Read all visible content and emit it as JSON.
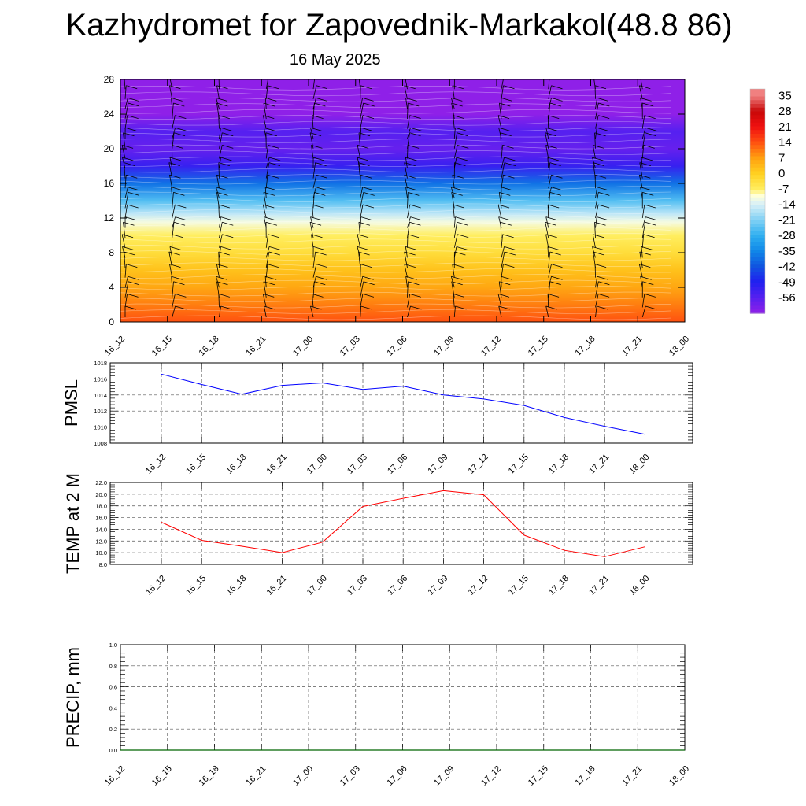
{
  "title": "Kazhydromet for Zapovednik-Markakol(48.8 86)",
  "subtitle": "16 May 2025",
  "chart_data": [
    {
      "type": "heatmap",
      "description_kind": "cross-section",
      "x_tick_labels": [
        "16_12",
        "16_15",
        "16_18",
        "16_21",
        "17_00",
        "17_03",
        "17_06",
        "17_09",
        "17_12",
        "17_15",
        "17_18",
        "17_21",
        "18_00"
      ],
      "y_tick_labels": [
        "0",
        "4",
        "8",
        "12",
        "16",
        "20",
        "24",
        "28"
      ],
      "ylim": [
        0,
        28
      ],
      "colorbar_labels": [
        "35",
        "28",
        "21",
        "14",
        "7",
        "0",
        "-7",
        "-14",
        "-21",
        "-28",
        "-35",
        "-42",
        "-49",
        "-56"
      ],
      "temperature_profile": [
        {
          "y": 0,
          "t": 14
        },
        {
          "y": 2,
          "t": 10
        },
        {
          "y": 4,
          "t": 6
        },
        {
          "y": 6,
          "t": 2
        },
        {
          "y": 8,
          "t": -3
        },
        {
          "y": 10,
          "t": -7
        },
        {
          "y": 11.5,
          "t": -11
        },
        {
          "y": 12.5,
          "t": -16
        },
        {
          "y": 14,
          "t": -25
        },
        {
          "y": 16,
          "t": -38
        },
        {
          "y": 18,
          "t": -52
        },
        {
          "y": 20,
          "t": -58
        },
        {
          "y": 22,
          "t": -56
        },
        {
          "y": 24,
          "t": -63
        },
        {
          "y": 28,
          "t": -65
        }
      ],
      "wind_barbs": true
    },
    {
      "type": "line",
      "ylabel": "PMSL",
      "x": [
        "16_12",
        "16_15",
        "16_18",
        "16_21",
        "17_00",
        "17_03",
        "17_06",
        "17_09",
        "17_12",
        "17_15",
        "17_18",
        "17_21",
        "18_00"
      ],
      "y_tick_labels": [
        "1008",
        "1010",
        "1012",
        "1014",
        "1016",
        "1018"
      ],
      "ylim": [
        1008,
        1018
      ],
      "grid": true,
      "series": [
        {
          "values": [
            1016.6,
            1015.3,
            1014.1,
            1015.2,
            1015.5,
            1014.7,
            1015.1,
            1014.0,
            1013.5,
            1012.7,
            1011.2,
            1010.1,
            1009.1
          ],
          "color": "#0000ff"
        }
      ]
    },
    {
      "type": "line",
      "ylabel": "TEMP at 2 M",
      "x": [
        "16_12",
        "16_15",
        "16_18",
        "16_21",
        "17_00",
        "17_03",
        "17_06",
        "17_09",
        "17_12",
        "17_15",
        "17_18",
        "17_21",
        "18_00"
      ],
      "y_tick_labels": [
        "8.0",
        "10.0",
        "12.0",
        "14.0",
        "16.0",
        "18.0",
        "20.0",
        "22.0"
      ],
      "ylim": [
        8,
        22
      ],
      "grid": true,
      "series": [
        {
          "values": [
            15.2,
            12.1,
            11.1,
            10.0,
            11.8,
            17.9,
            19.3,
            20.6,
            19.9,
            13.0,
            10.4,
            9.3,
            11.0
          ],
          "color": "#ff0000"
        }
      ]
    },
    {
      "type": "line",
      "ylabel": "PRECIP, mm",
      "x_tick_labels": [
        "16_12",
        "16_15",
        "16_18",
        "16_21",
        "17_00",
        "17_03",
        "17_06",
        "17_09",
        "17_12",
        "17_15",
        "17_18",
        "17_21",
        "18_00"
      ],
      "y_tick_labels": [
        "0.0",
        "0.2",
        "0.4",
        "0.6",
        "0.8",
        "1.0"
      ],
      "ylim": [
        0,
        1
      ],
      "grid": true,
      "series": [
        {
          "values": [
            0,
            0,
            0,
            0,
            0,
            0,
            0,
            0,
            0,
            0,
            0,
            0,
            0
          ],
          "color": "#006400"
        }
      ]
    }
  ]
}
